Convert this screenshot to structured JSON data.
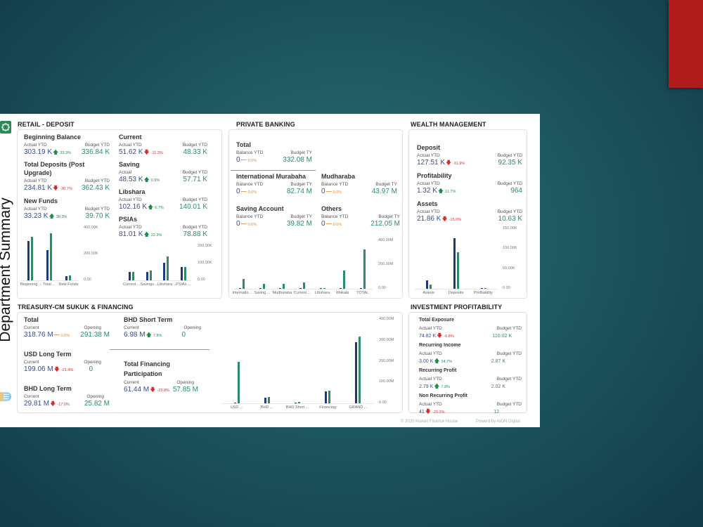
{
  "sidebar": {
    "title": "Department Summary",
    "logo_icon": "kfh-logo-icon",
    "menu_icon": "menu-icon"
  },
  "colors": {
    "actual": "#1f3a7a",
    "budget": "#2e8b68",
    "up": "#1f8a4c",
    "down": "#d42f2f",
    "flat": "#e08b3a",
    "accent_red_block": "#b01b1b"
  },
  "retail": {
    "title": "RETAIL - DEPOSIT",
    "kpis": [
      {
        "name": "Beginning Balance",
        "l1": "Actual YTD",
        "l2": "Budget YTD",
        "actual": "303.19 K",
        "dir": "up",
        "chg": "33.3%",
        "budget": "336.84 K"
      },
      {
        "name": "Total Deposits (Post Upgrade)",
        "l1": "Actual YTD",
        "l2": "Budget YTD",
        "actual": "234.81 K",
        "dir": "down",
        "chg": "-30.7%",
        "budget": "362.43 K"
      },
      {
        "name": "New Funds",
        "l1": "Actual YTD",
        "l2": "Budget YTD",
        "actual": "33.23 K",
        "dir": "up",
        "chg": "38.3%",
        "budget": "39.70 K"
      },
      {
        "name": "Current",
        "l1": "Actual YTD",
        "l2": "Budget YTD",
        "actual": "51.62 K",
        "dir": "down",
        "chg": "-11.3%",
        "budget": "48.33 K"
      },
      {
        "name": "Saving",
        "l1": "Actual",
        "l2": "Budget YTD",
        "actual": "48.53 K",
        "dir": "up",
        "chg": "0.9%",
        "budget": "57.71 K"
      },
      {
        "name": "Libshara",
        "l1": "Actual YTD",
        "l2": "Budget YTD",
        "actual": "102.16 K",
        "dir": "up",
        "chg": "6.7%",
        "budget": "140.01 K"
      },
      {
        "name": "PSIAs",
        "l1": "Actual YTD",
        "l2": "Budget YTD",
        "actual": "81.01 K",
        "dir": "up",
        "chg": "22.3%",
        "budget": "78.88 K"
      }
    ]
  },
  "private_banking": {
    "title": "PRIVATE BANKING",
    "kpis": [
      {
        "name": "Total",
        "l1": "Balance YTD",
        "l2": "Budget TY",
        "actual": "0",
        "dir": "flat",
        "chg": "0.0%",
        "budget": "332.08 M"
      },
      {
        "name": "International Murabaha",
        "l1": "Balance YTD",
        "l2": "Budget TY",
        "actual": "0",
        "dir": "flat",
        "chg": "0.0%",
        "budget": "82.74 M"
      },
      {
        "name": "Mudharaba",
        "l1": "Balance YTD",
        "l2": "Budget TY",
        "actual": "0",
        "dir": "flat",
        "chg": "0.0%",
        "budget": "43.97 M"
      },
      {
        "name": "Saving Account",
        "l1": "Balance YTD",
        "l2": "Budget TY",
        "actual": "0",
        "dir": "flat",
        "chg": "0.0%",
        "budget": "39.82 M"
      },
      {
        "name": "Others",
        "l1": "Balance YTD",
        "l2": "Budget TY",
        "actual": "0",
        "dir": "flat",
        "chg": "0.0%",
        "budget": "212.05 M"
      }
    ]
  },
  "wealth": {
    "title": "WEALTH MANAGEMENT",
    "kpis": [
      {
        "name": "Deposit",
        "l1": "Actual YTD",
        "l2": "Budget YTD",
        "actual": "127.51 K",
        "dir": "down",
        "chg": "-11.9%",
        "budget": "92.35 K"
      },
      {
        "name": "Profitability",
        "l1": "Actual YTD",
        "l2": "Budget YTD",
        "actual": "1.32 K",
        "dir": "up",
        "chg": "11.7%",
        "budget": "964"
      },
      {
        "name": "Assets",
        "l1": "Actual YTD",
        "l2": "Budget YTD",
        "actual": "21.86 K",
        "dir": "down",
        "chg": "-15.0%",
        "budget": "10.63 K"
      }
    ]
  },
  "treasury": {
    "title": "TREASURY-CM SUKUK & FINANCING",
    "kpis": [
      {
        "name": "Total",
        "l1": "Current",
        "l2": "Opening",
        "actual": "318.76 M",
        "dir": "flat",
        "chg": "0.0%",
        "budget": "291.38 M"
      },
      {
        "name": "USD Long Term",
        "l1": "Current",
        "l2": "Opening",
        "actual": "199.06 M",
        "dir": "down",
        "chg": "-21.4%",
        "budget": "0"
      },
      {
        "name": "BHD Long Term",
        "l1": "Current",
        "l2": "Opening",
        "actual": "29.81 M",
        "dir": "down",
        "chg": "-17.0%",
        "budget": "25.82 M"
      },
      {
        "name": "BHD Short Term",
        "l1": "Current",
        "l2": "Opening",
        "actual": "6.98 M",
        "dir": "up",
        "chg": "7.8%",
        "budget": "0"
      },
      {
        "name": "Total Financing Participation",
        "l1": "Current",
        "l2": "Opening",
        "actual": "61.44 M",
        "dir": "down",
        "chg": "-23.8%",
        "budget": "57.85 M"
      }
    ]
  },
  "investment": {
    "title": "INVESTMENT PROFITABILITY",
    "kpis": [
      {
        "name": "Total Exposure",
        "l1": "Actual YTD",
        "l2": "Budget YTD",
        "actual": "74.82 K",
        "dir": "down",
        "chg": "-6.8%",
        "budget": "110.02 K"
      },
      {
        "name": "Recurring Income",
        "l1": "Actual YTD",
        "l2": "Budget YTD",
        "actual": "3.00 K",
        "dir": "up",
        "chg": "14.7%",
        "budget": "2.87 K"
      },
      {
        "name": "Recurring Profit",
        "l1": "Actual YTD",
        "l2": "Budget YTD",
        "actual": "2.79 K",
        "dir": "up",
        "chg": "7.8%",
        "budget": "2.02 K"
      },
      {
        "name": "Non Recurring Profit",
        "l1": "Actual YTD",
        "l2": "Budget YTD",
        "actual": "41",
        "dir": "down",
        "chg": "-29.3%",
        "budget": "12"
      }
    ]
  },
  "footer": {
    "copyright": "© 2020 Kuwait Finance House",
    "powered": "Powerd by AION Digital"
  },
  "chart_data": [
    {
      "id": "retail_a",
      "type": "bar",
      "categories": [
        "Beginning ...",
        "Total ...",
        "New Funds"
      ],
      "series": [
        {
          "name": "Actual",
          "values": [
            303.19,
            234.81,
            33.23
          ]
        },
        {
          "name": "Budget",
          "values": [
            336.84,
            362.43,
            39.7
          ]
        }
      ],
      "yticks": [
        "0.00",
        "200.00K",
        "400.00K"
      ],
      "ylim": [
        0,
        400
      ]
    },
    {
      "id": "retail_b",
      "type": "bar",
      "categories": [
        "Current ...",
        "Savings ...",
        "Libshara ...",
        "PSIAs ..."
      ],
      "series": [
        {
          "name": "Actual",
          "values": [
            51.62,
            48.53,
            102.16,
            81.01
          ]
        },
        {
          "name": "Budget",
          "values": [
            48.33,
            57.71,
            140.01,
            78.88
          ]
        }
      ],
      "yticks": [
        "0.00",
        "100.00K",
        "200.00K"
      ],
      "ylim": [
        0,
        200
      ]
    },
    {
      "id": "private_banking",
      "type": "bar",
      "categories": [
        "Internatio...",
        "Saving ...",
        "Mudharaba",
        "Current ...",
        "Libshara",
        "Wakala",
        "TOTAL"
      ],
      "series": [
        {
          "name": "Balance",
          "values": [
            0,
            0,
            0,
            0,
            0,
            0,
            0
          ]
        },
        {
          "name": "Budget",
          "values": [
            82.74,
            39.82,
            43.97,
            52,
            6,
            152,
            332.08
          ]
        }
      ],
      "yticks": [
        "0.00",
        "200.00M",
        "400.00M"
      ],
      "ylim": [
        0,
        400
      ]
    },
    {
      "id": "wealth",
      "type": "bar",
      "categories": [
        "Assets",
        "Deposits",
        "Profitability"
      ],
      "series": [
        {
          "name": "Actual",
          "values": [
            21.86,
            127.51,
            1.32
          ]
        },
        {
          "name": "Budget",
          "values": [
            10.63,
            92.35,
            0.964
          ]
        }
      ],
      "yticks": [
        "0.00",
        "50.00K",
        "100.00K",
        "150.00K"
      ],
      "ylim": [
        0,
        150
      ]
    },
    {
      "id": "treasury",
      "type": "bar",
      "categories": [
        "USD ...",
        "BHD ...",
        "BHD Short ...",
        "Financing",
        "GRAND ..."
      ],
      "series": [
        {
          "name": "Opening",
          "values": [
            0,
            25.82,
            0,
            57.85,
            291.38
          ]
        },
        {
          "name": "Current",
          "values": [
            199.06,
            29.81,
            6.98,
            61.44,
            318.76
          ]
        }
      ],
      "yticks": [
        "0.00",
        "100.00M",
        "200.00M",
        "300.00M",
        "400.00M"
      ],
      "ylim": [
        0,
        400
      ]
    }
  ]
}
